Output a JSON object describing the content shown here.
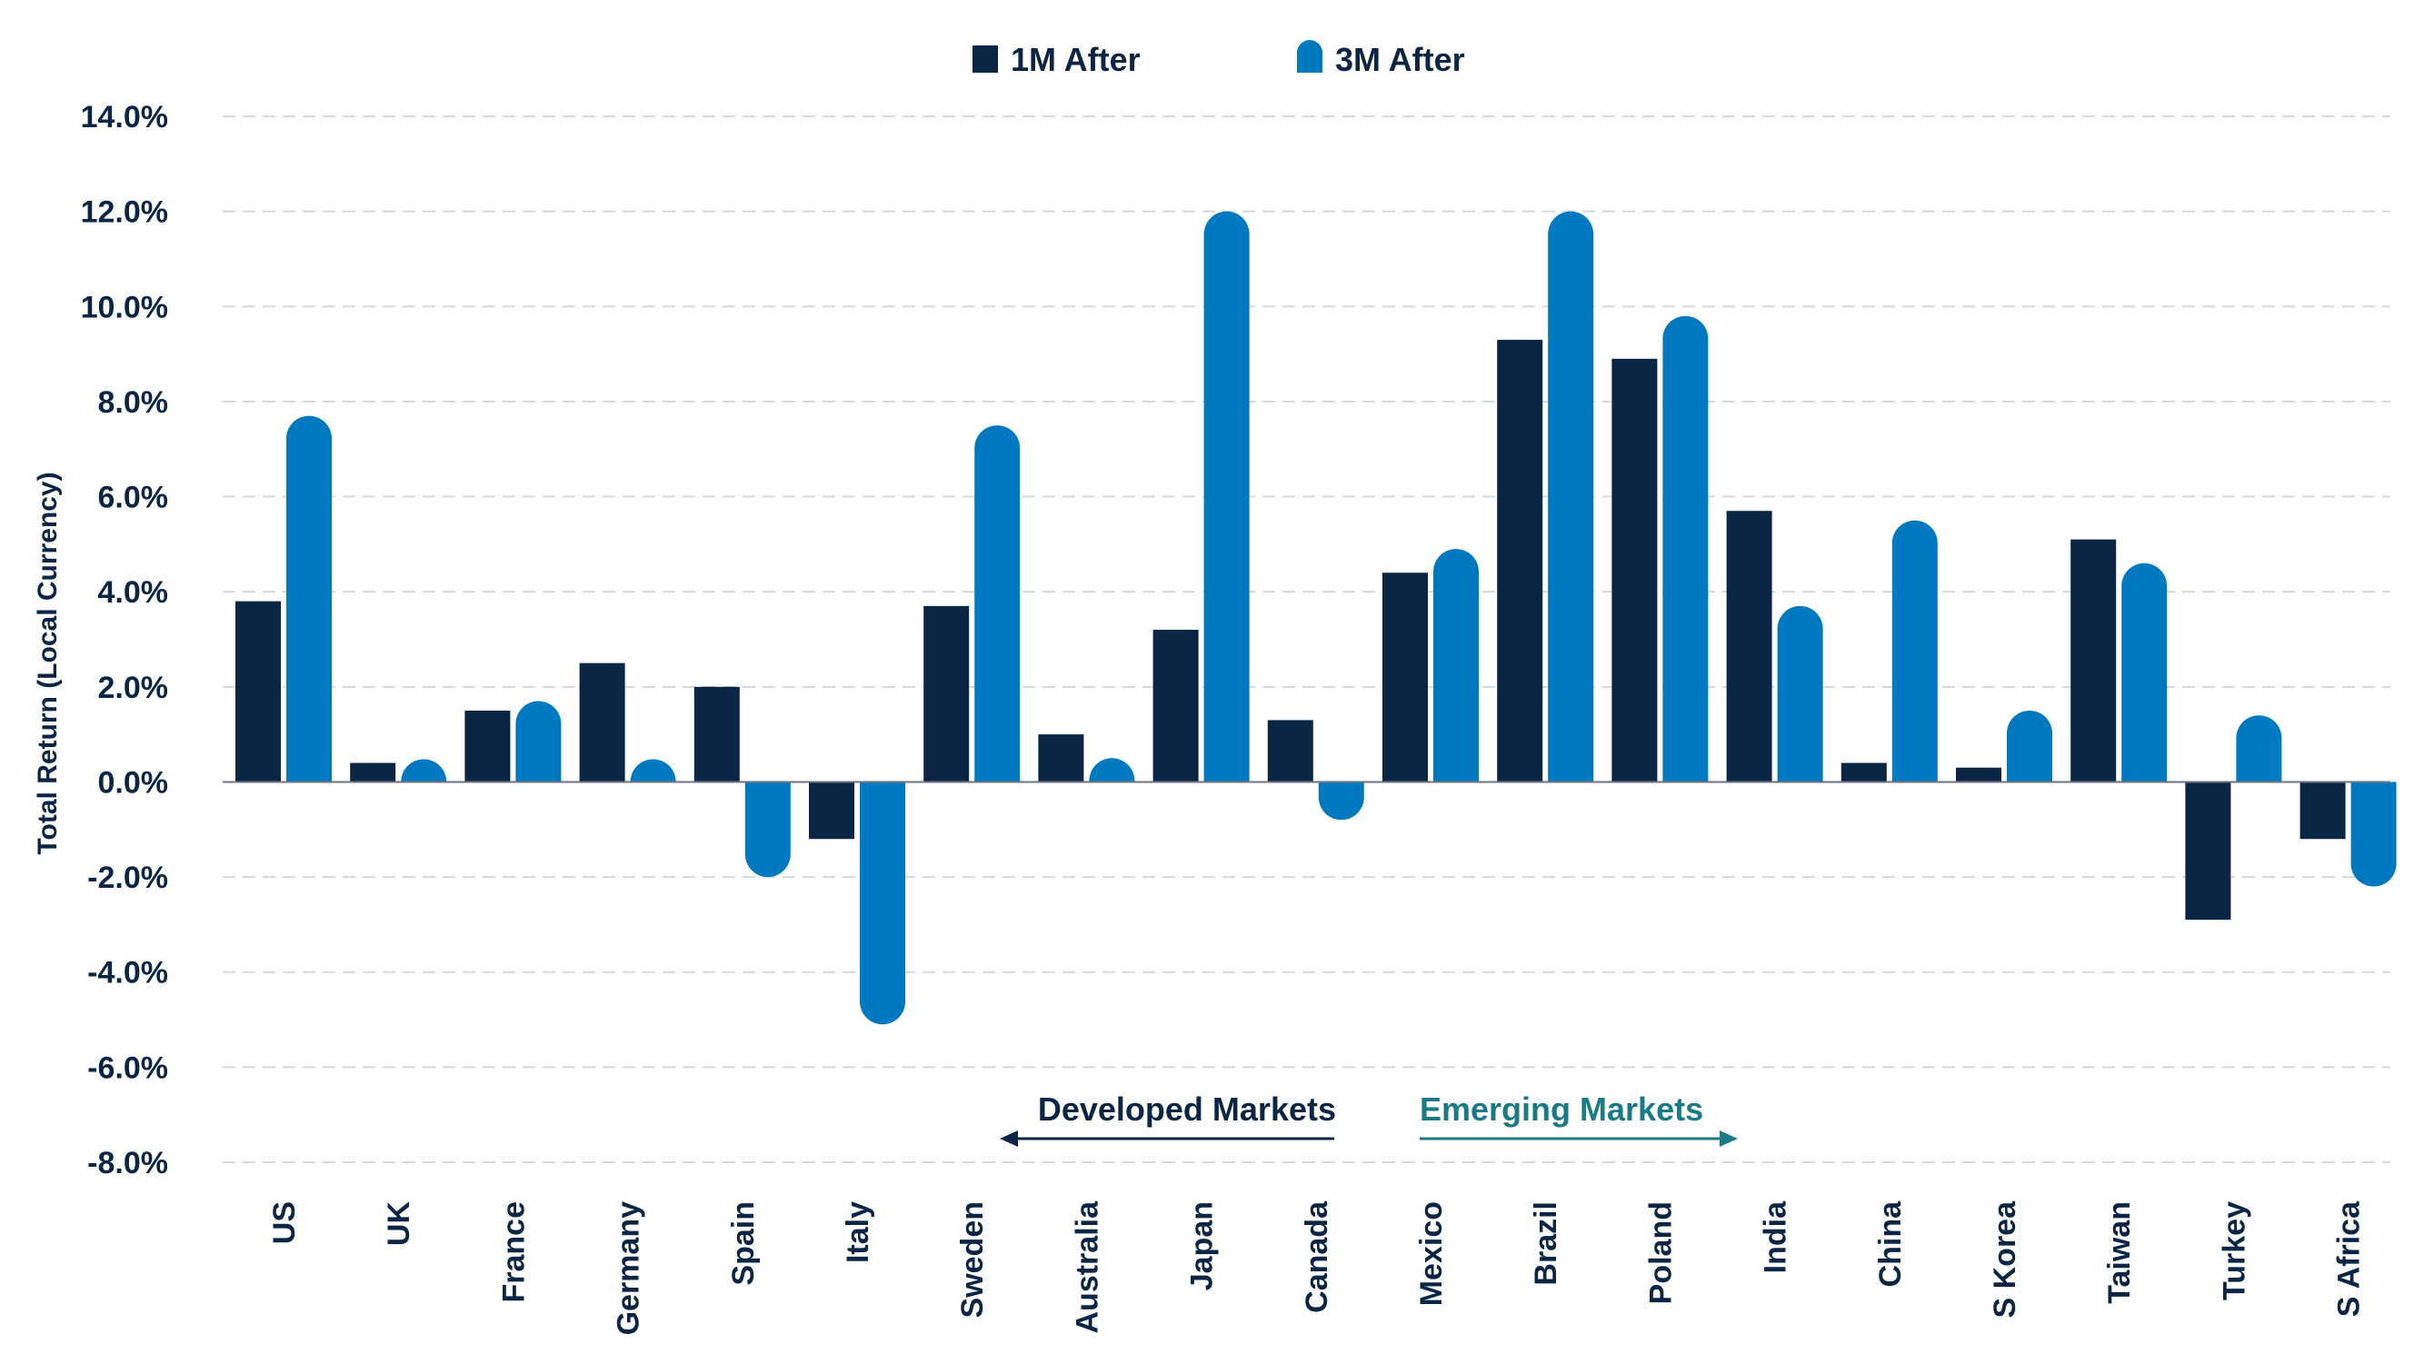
{
  "chart_data": {
    "type": "bar",
    "ylabel": "Total Return (Local Currency)",
    "ylim": [
      -8,
      14
    ],
    "yticks": [
      "14.0%",
      "12.0%",
      "10.0%",
      "8.0%",
      "6.0%",
      "4.0%",
      "2.0%",
      "0.0%",
      "-2.0%",
      "-4.0%",
      "-6.0%",
      "-8.0%"
    ],
    "ytick_values": [
      14,
      12,
      10,
      8,
      6,
      4,
      2,
      0,
      -2,
      -4,
      -6,
      -8
    ],
    "grid": true,
    "legend_position": "top-center",
    "categories": [
      "US",
      "UK",
      "France",
      "Germany",
      "Spain",
      "Italy",
      "Sweden",
      "Australia",
      "Japan",
      "Canada",
      "Mexico",
      "Brazil",
      "Poland",
      "India",
      "China",
      "S Korea",
      "Taiwan",
      "Turkey",
      "S Africa"
    ],
    "series": [
      {
        "name": "1M After",
        "color": "#0b2545",
        "style": "square",
        "values": [
          3.8,
          0.4,
          1.5,
          2.5,
          2.0,
          -1.2,
          3.7,
          1.0,
          3.2,
          1.3,
          4.4,
          9.3,
          8.9,
          5.7,
          0.4,
          0.3,
          5.1,
          -2.9,
          -1.2
        ]
      },
      {
        "name": "3M After",
        "color": "#0079c1",
        "style": "rounded",
        "values": [
          7.7,
          0.05,
          1.7,
          0.4,
          -2.0,
          -5.1,
          7.5,
          0.5,
          12.0,
          -0.8,
          4.9,
          12.0,
          9.8,
          3.7,
          5.5,
          1.5,
          4.6,
          1.4,
          -2.2
        ]
      }
    ],
    "annotations": {
      "developed": {
        "text": "Developed Markets",
        "arrow": "left",
        "color": "#0b2545"
      },
      "emerging": {
        "text": "Emerging Markets",
        "arrow": "right",
        "color": "#1a7a86"
      }
    }
  }
}
